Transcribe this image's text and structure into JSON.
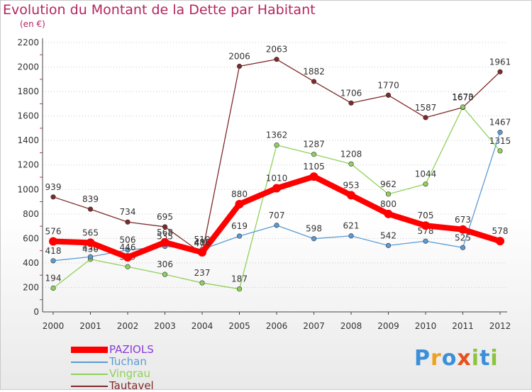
{
  "chart_data": {
    "type": "line",
    "title": "Evolution du Montant de la Dette par Habitant",
    "subtitle": "(en €)",
    "categories": [
      "2000",
      "2001",
      "2002",
      "2003",
      "2004",
      "2005",
      "2006",
      "2007",
      "2008",
      "2009",
      "2010",
      "2011",
      "2012"
    ],
    "ylim": [
      0,
      2200
    ],
    "yticks": [
      "0",
      "200",
      "400",
      "600",
      "800",
      "1000",
      "1200",
      "1400",
      "1600",
      "1800",
      "2000",
      "2200"
    ],
    "grid": "horizontal dotted",
    "legend_position": "bottom-left",
    "series": [
      {
        "name": "Tautavel",
        "color": "#7f2a2a",
        "values": [
          939,
          839,
          734,
          695,
          477,
          2006,
          2063,
          1882,
          1706,
          1770,
          1587,
          1670,
          1961
        ]
      },
      {
        "name": "Vingrau",
        "color": "#8fd15a",
        "values": [
          194,
          430,
          369,
          306,
          237,
          187,
          1362,
          1287,
          1208,
          962,
          1044,
          1673,
          1315
        ]
      },
      {
        "name": "Tuchan",
        "color": "#5b9bd5",
        "values": [
          418,
          450,
          506,
          535,
          510,
          619,
          707,
          598,
          621,
          542,
          578,
          525,
          1467
        ]
      },
      {
        "name": "PAZIOLS",
        "color": "#ff0000",
        "values": [
          576,
          565,
          446,
          568,
          486,
          880,
          1010,
          1105,
          953,
          800,
          705,
          673,
          578
        ]
      }
    ],
    "data_labels": [
      [
        "939",
        "839",
        "734",
        "695",
        "477",
        "2006",
        "2063",
        "1882",
        "1706",
        "1770",
        "1587",
        "1670",
        "1961"
      ],
      [
        "194",
        "430",
        "369",
        "306",
        "237",
        "187",
        "1362",
        "1287",
        "1208",
        "962",
        "1044",
        "1673",
        "1315"
      ],
      [
        "418",
        "450",
        "506",
        "535",
        "510",
        "619",
        "707",
        "598",
        "621",
        "542",
        "578",
        "525",
        "1467"
      ],
      [
        "576",
        "565",
        "446",
        "568",
        "486",
        "880",
        "1010",
        "1105",
        "953",
        "800",
        "705",
        "673",
        "578"
      ]
    ]
  },
  "legend": {
    "items": [
      {
        "label": "PAZIOLS",
        "color": "#ff0000",
        "thick": true
      },
      {
        "label": "Tuchan",
        "color": "#5b9bd5",
        "thick": false
      },
      {
        "label": "Vingrau",
        "color": "#8fd15a",
        "thick": false
      },
      {
        "label": "Tautavel",
        "color": "#7f2a2a",
        "thick": false
      }
    ]
  },
  "branding": {
    "letters": [
      {
        "ch": "P",
        "color": "#3a8fd8"
      },
      {
        "ch": "r",
        "color": "#f0a020"
      },
      {
        "ch": "o",
        "color": "#3a8fd8"
      },
      {
        "ch": "x",
        "color": "#e94e1b"
      },
      {
        "ch": "i",
        "color": "#8bc53f"
      },
      {
        "ch": "t",
        "color": "#3a8fd8"
      },
      {
        "ch": "i",
        "color": "#8bc53f"
      }
    ]
  }
}
